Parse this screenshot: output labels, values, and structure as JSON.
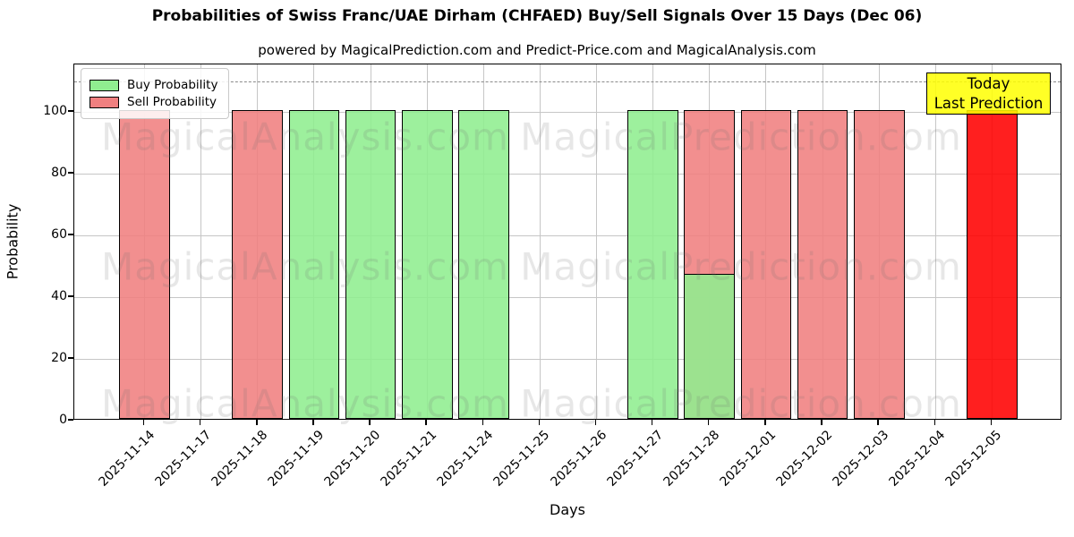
{
  "title": "Probabilities of Swiss Franc/UAE Dirham (CHFAED) Buy/Sell Signals Over 15 Days (Dec 06)",
  "subtitle": "powered by MagicalPrediction.com and Predict-Price.com and MagicalAnalysis.com",
  "axes": {
    "x_label": "Days",
    "y_label": "Probability",
    "y_ticks": [
      0,
      20,
      40,
      60,
      80,
      100
    ],
    "y_max_visible": 115.4,
    "dashed_line_y": 110
  },
  "legend": {
    "items": [
      {
        "label": "Buy Probability",
        "color": "#90EE90"
      },
      {
        "label": "Sell Probability",
        "color": "#F08080"
      }
    ]
  },
  "annotation": {
    "line1": "Today",
    "line2": "Last Prediction",
    "bg_color": "#FFFF00"
  },
  "watermarks": {
    "left_text": "MagicalAnalysis.com",
    "right_text": "MagicalPrediction.com"
  },
  "chart_data": {
    "type": "bar",
    "title": "Probabilities of Swiss Franc/UAE Dirham (CHFAED) Buy/Sell Signals Over 15 Days (Dec 06)",
    "xlabel": "Days",
    "ylabel": "Probability",
    "ylim": [
      0,
      115
    ],
    "grid": true,
    "legend_position": "upper left",
    "categories": [
      "2025-11-14",
      "2025-11-17",
      "2025-11-18",
      "2025-11-19",
      "2025-11-20",
      "2025-11-21",
      "2025-11-24",
      "2025-11-25",
      "2025-11-26",
      "2025-11-27",
      "2025-11-28",
      "2025-12-01",
      "2025-12-02",
      "2025-12-03",
      "2025-12-04",
      "2025-12-05"
    ],
    "series": [
      {
        "name": "Sell Probability",
        "color": "#F08080",
        "values": [
          100,
          0,
          100,
          0,
          0,
          0,
          0,
          0,
          0,
          0,
          100,
          100,
          100,
          100,
          0,
          100
        ]
      },
      {
        "name": "Buy Probability",
        "color": "#90EE90",
        "values": [
          0,
          0,
          0,
          100,
          100,
          100,
          100,
          0,
          0,
          100,
          47,
          0,
          0,
          0,
          0,
          0
        ]
      }
    ],
    "today_bar": {
      "category": "2025-12-05",
      "series": "Sell Probability",
      "value": 100,
      "color": "#FF0000"
    },
    "reference_line": {
      "value": 110,
      "style": "dashed",
      "color": "#8a8a8a"
    }
  }
}
